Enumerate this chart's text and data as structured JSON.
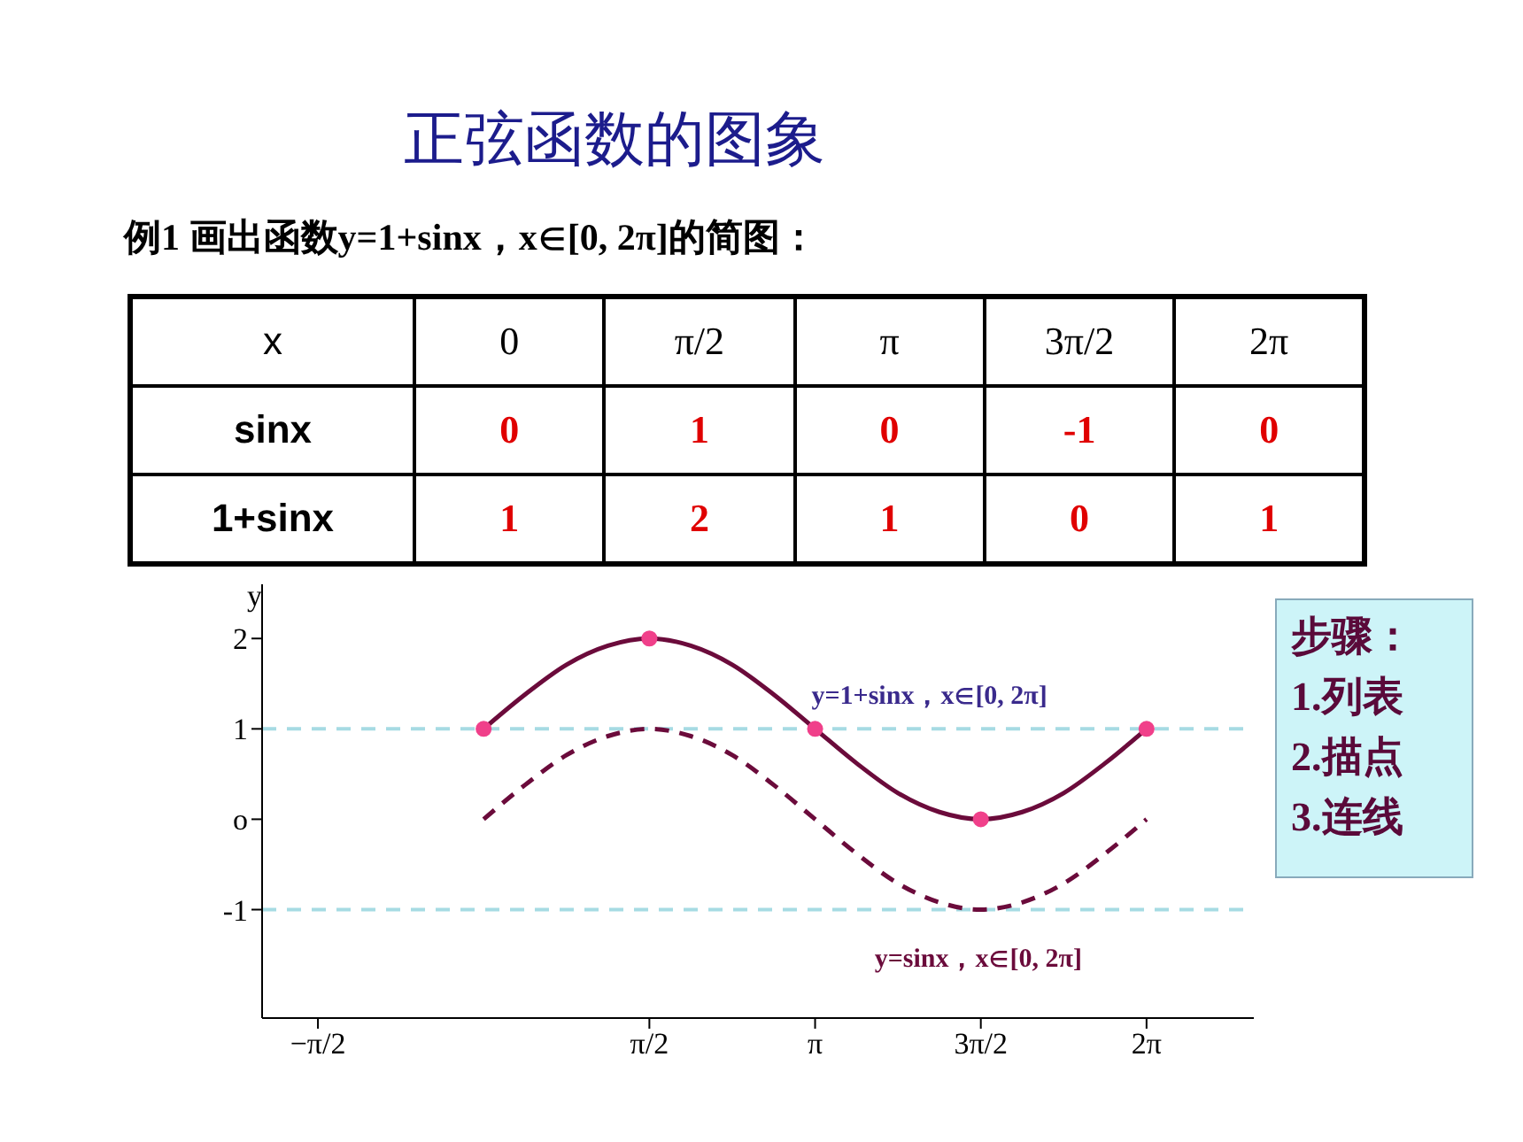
{
  "chart_data": {
    "type": "line",
    "title": "正弦函数的图象",
    "subtitle": "例1  画出函数y=1+sinx，x∈[0, 2π]的简图：",
    "ylabel": "y",
    "xlim": [
      -2.1,
      7.3
    ],
    "ylim": [
      -2.2,
      2.6
    ],
    "xticks": [
      {
        "value": -1.5708,
        "label": "−π/2"
      },
      {
        "value": 1.5708,
        "label": "π/2"
      },
      {
        "value": 3.1416,
        "label": "π"
      },
      {
        "value": 4.7124,
        "label": "3π/2"
      },
      {
        "value": 6.2832,
        "label": "2π"
      }
    ],
    "yticks": [
      2,
      1,
      {
        "value": 0,
        "label": "o"
      },
      -1
    ],
    "grid": false,
    "legend": false,
    "annotations": [
      "x",
      "0",
      "π/2",
      "π",
      "3π/2",
      "2π",
      "sinx",
      "0",
      "1",
      "0",
      "-1",
      "0",
      "1+sinx",
      "1",
      "2",
      "1",
      "0",
      "1",
      "步骤：\n1.列表\n2.描点\n3.连线"
    ],
    "ref_lines": [
      {
        "axis": "y",
        "value": 1,
        "color": "#a6dbe3",
        "line_style": "dashed"
      },
      {
        "axis": "y",
        "value": -1,
        "color": "#a6dbe3",
        "line_style": "dashed"
      }
    ],
    "series": [
      {
        "name": "y=1+sinx，x∈[0, 2π]",
        "color": "#6b0b3b",
        "line_style": "solid",
        "marker": "none",
        "x": [
          0,
          0.3927,
          0.7854,
          1.1781,
          1.5708,
          1.9635,
          2.3562,
          2.7489,
          3.1416,
          3.5343,
          3.927,
          4.3197,
          4.7124,
          5.1051,
          5.4978,
          5.8905,
          6.2832
        ],
        "values": [
          1,
          1.38,
          1.71,
          1.92,
          2,
          1.92,
          1.71,
          1.38,
          1,
          0.62,
          0.29,
          0.08,
          0,
          0.08,
          0.29,
          0.62,
          1
        ]
      },
      {
        "name": "y=sinx，x∈[0, 2π]",
        "color": "#6b0b3b",
        "line_style": "dashed",
        "marker": "none",
        "x": [
          0,
          0.3927,
          0.7854,
          1.1781,
          1.5708,
          1.9635,
          2.3562,
          2.7489,
          3.1416,
          3.5343,
          3.927,
          4.3197,
          4.7124,
          5.1051,
          5.4978,
          5.8905,
          6.2832
        ],
        "values": [
          0,
          0.38,
          0.71,
          0.92,
          1,
          0.92,
          0.71,
          0.38,
          0,
          -0.38,
          -0.71,
          -0.92,
          -1,
          -0.92,
          -0.71,
          -0.38,
          0
        ]
      },
      {
        "type": "scatter",
        "color": "#f0408a",
        "marker": "circle",
        "x": [
          0,
          1.5708,
          3.1416,
          4.7124,
          6.2832
        ],
        "values": [
          1,
          2,
          1,
          0,
          1
        ]
      }
    ]
  }
}
